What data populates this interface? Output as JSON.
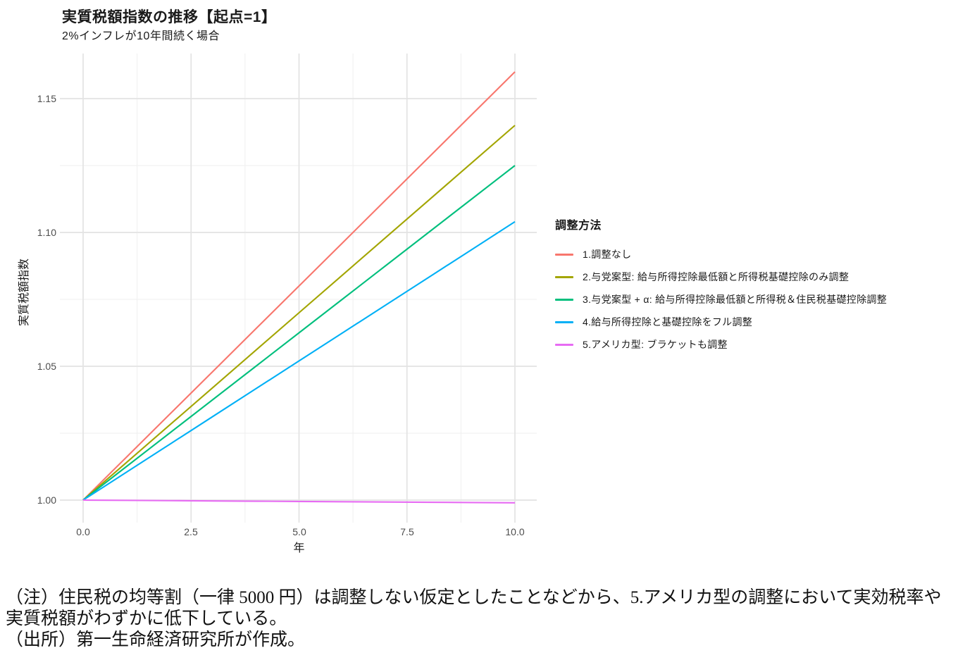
{
  "chart": {
    "title": "実質税額指数の推移【起点=1】",
    "subtitle": "2%インフレが10年間続く場合"
  },
  "chart_data": {
    "type": "line",
    "title": "実質税額指数の推移【起点=1】",
    "subtitle": "2%インフレが10年間続く場合",
    "xlabel": "年",
    "ylabel": "実質税額指数",
    "xlim": [
      -0.5,
      10.5
    ],
    "ylim": [
      0.993,
      1.168
    ],
    "x_ticks": [
      0.0,
      2.5,
      5.0,
      7.5,
      10.0
    ],
    "x_tick_labels": [
      "0.0",
      "2.5",
      "5.0",
      "7.5",
      "10.0"
    ],
    "y_ticks": [
      1.0,
      1.05,
      1.1,
      1.15
    ],
    "y_tick_labels": [
      "1.00",
      "1.05",
      "1.10",
      "1.15"
    ],
    "grid": "major+minor, light gray, no axis lines",
    "legend_title": "調整方法",
    "legend_position": "right",
    "x": [
      0,
      1,
      2,
      3,
      4,
      5,
      6,
      7,
      8,
      9,
      10
    ],
    "series": [
      {
        "name": "1.調整なし",
        "color": "#F8766D",
        "values": [
          1.0,
          1.016,
          1.032,
          1.048,
          1.064,
          1.08,
          1.096,
          1.112,
          1.128,
          1.144,
          1.16
        ]
      },
      {
        "name": "2.与党案型: 給与所得控除最低額と所得税基礎控除のみ調整",
        "color": "#A3A500",
        "values": [
          1.0,
          1.014,
          1.028,
          1.042,
          1.056,
          1.07,
          1.084,
          1.098,
          1.112,
          1.126,
          1.14
        ]
      },
      {
        "name": "3.与党案型 + α: 給与所得控除最低額と所得税＆住民税基礎控除調整",
        "color": "#00BF7D",
        "values": [
          1.0,
          1.0125,
          1.025,
          1.0375,
          1.05,
          1.0625,
          1.075,
          1.0875,
          1.1,
          1.1125,
          1.125
        ]
      },
      {
        "name": "4.給与所得控除と基礎控除をフル調整",
        "color": "#00B0F6",
        "values": [
          1.0,
          1.0104,
          1.0208,
          1.0312,
          1.0416,
          1.052,
          1.0624,
          1.0728,
          1.0832,
          1.0936,
          1.104
        ]
      },
      {
        "name": "5.アメリカ型: ブラケットも調整",
        "color": "#E76BF3",
        "values": [
          1.0,
          0.9999,
          0.9998,
          0.9997,
          0.9996,
          0.9995,
          0.9994,
          0.9993,
          0.9992,
          0.9991,
          0.999
        ]
      }
    ]
  },
  "notes": {
    "line1": "（注）住民税の均等割（一律 5000 円）は調整しない仮定としたことなどから、5.アメリカ型の調整において実効税率や",
    "line2": "実質税額がわずかに低下している。",
    "line3": "（出所）第一生命経済研究所が作成。"
  }
}
